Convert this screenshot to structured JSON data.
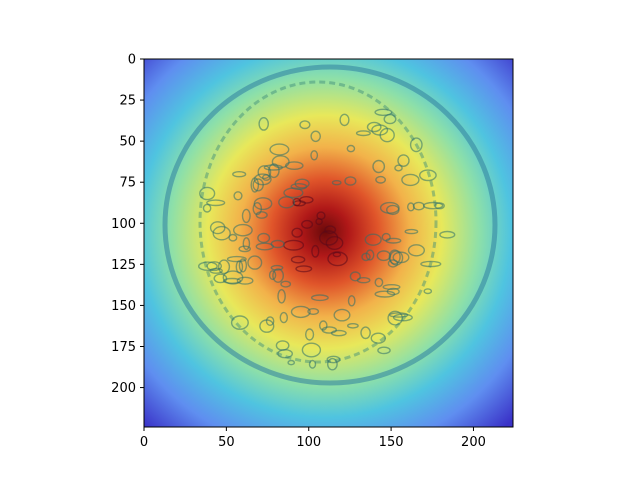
{
  "chart_data": {
    "type": "heatmap",
    "title": "",
    "xlabel": "",
    "ylabel": "",
    "xlim": [
      0,
      224
    ],
    "ylim": [
      224,
      0
    ],
    "x_ticks": [
      0,
      50,
      100,
      150,
      200
    ],
    "y_ticks": [
      0,
      25,
      50,
      75,
      100,
      125,
      150,
      175,
      200
    ],
    "colormap": "jet",
    "overlay": "attention heatmap over histology image",
    "hotspot_center": [
      110,
      105
    ],
    "colors": {
      "low": "#3f3fe6",
      "mid_low": "#35c8d8",
      "mid": "#e8e85a",
      "mid_high": "#f2993a",
      "high": "#b01818"
    }
  }
}
